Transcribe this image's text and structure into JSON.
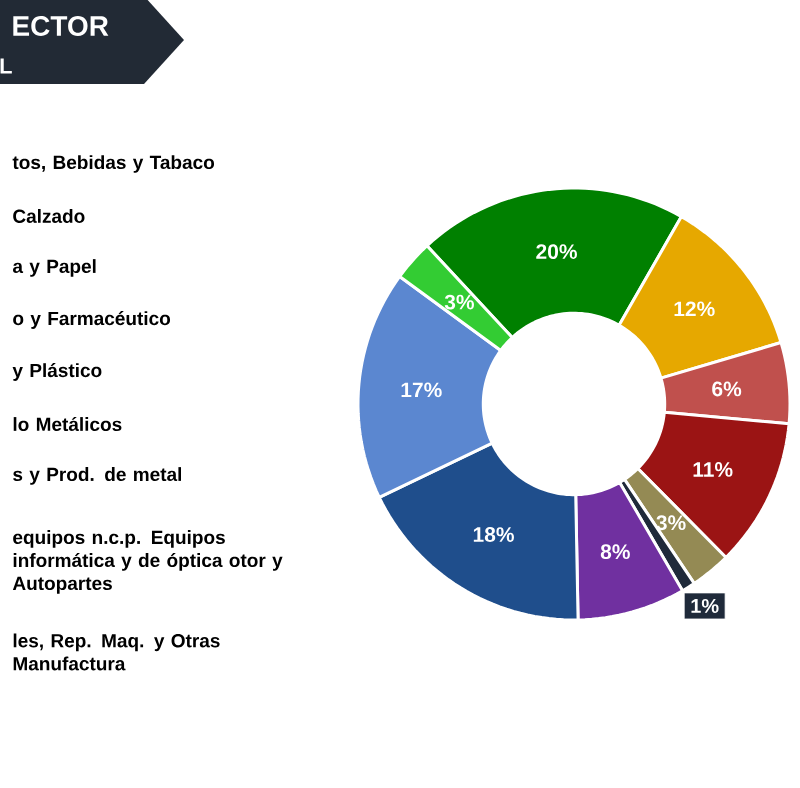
{
  "chart_data": {
    "type": "donut",
    "title": "ECTOR",
    "subtitle": "L",
    "categories": [
      null,
      null,
      null,
      null,
      null,
      null,
      null,
      null,
      null,
      null
    ],
    "values": [
      20,
      12,
      6,
      11,
      3,
      1,
      8,
      18,
      17,
      3
    ],
    "colors": [
      "#008000",
      "#e6a800",
      "#c0504d",
      "#9b1414",
      "#948a54",
      "#1f2a3a",
      "#7030a0",
      "#1f4e8c",
      "#5b87d0",
      "#33cc33"
    ],
    "value_labels": [
      "20%",
      "12%",
      "6%",
      "11%",
      "3%",
      "1%",
      "8%",
      "18%",
      "17%",
      "3%"
    ],
    "annotations": [
      "tos, Bebidas y Tabaco",
      "Calzado",
      "a y Papel",
      "o y Farmacéutico",
      "y Plástico",
      "lo Metálicos",
      "s y Prod. de metal",
      "equipos n.c.p. Equipos informática y de óptica otor y Autopartes",
      "les, Rep. Maq. y Otras Manufactura"
    ]
  }
}
